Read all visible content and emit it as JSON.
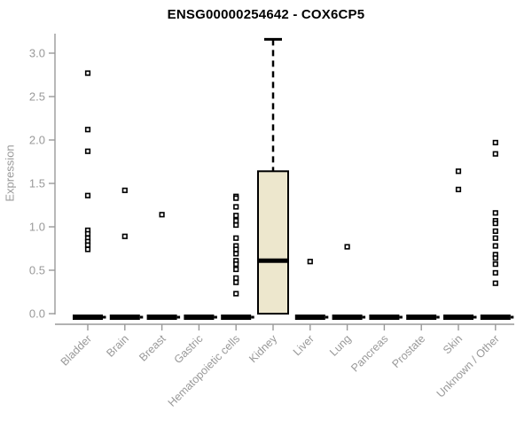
{
  "header": {
    "title": "ENSG00000254642 - COX6CP5"
  },
  "chart_data": {
    "type": "boxplot",
    "title": "ENSG00000254642 - COX6CP5",
    "xlabel": "",
    "ylabel": "Expression",
    "ylim": [
      0,
      3.2
    ],
    "yticks": [
      0.0,
      0.5,
      1.0,
      1.5,
      2.0,
      2.5,
      3.0
    ],
    "grid": false,
    "legend": "none",
    "categories": [
      "Bladder",
      "Brain",
      "Breast",
      "Gastric",
      "Hematopoietic cells",
      "Kidney",
      "Liver",
      "Lung",
      "Pancreas",
      "Prostate",
      "Skin",
      "Unknown / Other"
    ],
    "series": [
      {
        "category": "Bladder",
        "box": {
          "min": 0,
          "q1": 0,
          "median": 0,
          "q3": 0,
          "max": 0
        },
        "outliers": [
          2.77,
          2.12,
          1.87,
          1.36,
          0.96,
          0.92,
          0.87,
          0.83,
          0.79,
          0.74
        ]
      },
      {
        "category": "Brain",
        "box": {
          "min": 0,
          "q1": 0,
          "median": 0,
          "q3": 0,
          "max": 0
        },
        "outliers": [
          1.42,
          0.89
        ]
      },
      {
        "category": "Breast",
        "box": {
          "min": 0,
          "q1": 0,
          "median": 0,
          "q3": 0,
          "max": 0
        },
        "outliers": [
          1.14
        ]
      },
      {
        "category": "Gastric",
        "box": {
          "min": 0,
          "q1": 0,
          "median": 0,
          "q3": 0,
          "max": 0
        },
        "outliers": []
      },
      {
        "category": "Hematopoietic cells",
        "box": {
          "min": 0,
          "q1": 0,
          "median": 0,
          "q3": 0,
          "max": 0
        },
        "outliers": [
          1.35,
          1.33,
          1.23,
          1.13,
          1.07,
          1.02,
          0.87,
          0.78,
          0.74,
          0.69,
          0.61,
          0.57,
          0.51,
          0.41,
          0.36,
          0.23
        ]
      },
      {
        "category": "Kidney",
        "box": {
          "min": 0,
          "q1": 0,
          "median": 0.61,
          "q3": 1.64,
          "max": 3.16
        },
        "outliers": []
      },
      {
        "category": "Liver",
        "box": {
          "min": 0,
          "q1": 0,
          "median": 0,
          "q3": 0,
          "max": 0
        },
        "outliers": [
          0.6
        ]
      },
      {
        "category": "Lung",
        "box": {
          "min": 0,
          "q1": 0,
          "median": 0,
          "q3": 0,
          "max": 0
        },
        "outliers": [
          0.77
        ]
      },
      {
        "category": "Pancreas",
        "box": {
          "min": 0,
          "q1": 0,
          "median": 0,
          "q3": 0,
          "max": 0
        },
        "outliers": []
      },
      {
        "category": "Prostate",
        "box": {
          "min": 0,
          "q1": 0,
          "median": 0,
          "q3": 0,
          "max": 0
        },
        "outliers": []
      },
      {
        "category": "Skin",
        "box": {
          "min": 0,
          "q1": 0,
          "median": 0,
          "q3": 0,
          "max": 0
        },
        "outliers": [
          1.64,
          1.43
        ]
      },
      {
        "category": "Unknown / Other",
        "box": {
          "min": 0,
          "q1": 0,
          "median": 0,
          "q3": 0,
          "max": 0
        },
        "outliers": [
          1.97,
          1.84,
          1.16,
          1.07,
          1.04,
          0.95,
          0.87,
          0.78,
          0.68,
          0.64,
          0.57,
          0.47,
          0.35
        ]
      }
    ],
    "colors": {
      "box_fill": "#EDE7CD",
      "box_border": "#000000",
      "median": "#000000",
      "whisker": "#000000",
      "outlier_stroke": "#000000",
      "outlier_fill": "#ffffff",
      "axis_line": "#999999",
      "tick_label": "#999999",
      "title_color": "#000000"
    }
  }
}
